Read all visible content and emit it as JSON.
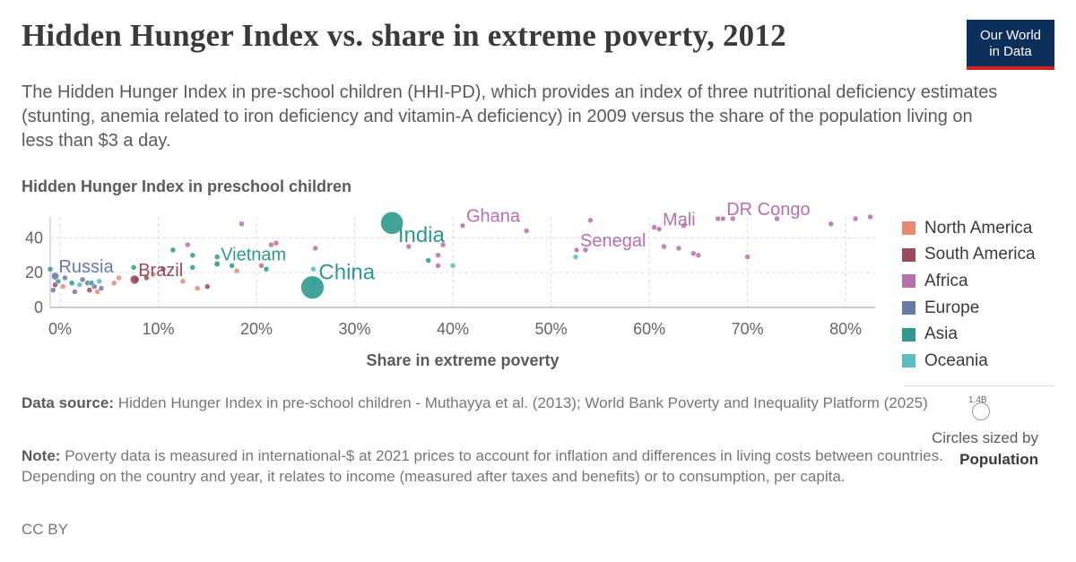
{
  "title": "Hidden Hunger Index vs. share in extreme poverty, 2012",
  "subtitle": "The Hidden Hunger Index in pre-school children (HHI-PD), which provides an index of three nutritional deficiency estimates (stunting, anemia related to iron deficiency and vitamin-A deficiency) in 2009 versus the share of the population living on less than $3 a day.",
  "logo": {
    "line1": "Our World",
    "line2": "in Data"
  },
  "size_legend": {
    "value": "1.4B",
    "label": "Circles sized by",
    "variable": "Population"
  },
  "footer": {
    "source_label": "Data source:",
    "source_text": "Hidden Hunger Index in pre-school children - Muthayya et al. (2013); World Bank Poverty and Inequality Platform (2025)",
    "note_label": "Note:",
    "note_text": "Poverty data is measured in international-$ at 2021 prices to account for inflation and differences in living costs between countries. Depending on the country and year, it relates to income (measured after taxes and benefits) or to consumption, per capita.",
    "license": "CC BY"
  },
  "colors": {
    "North America": "#e56e5a",
    "South America": "#a2559c",
    "Africa": "#a2559c",
    "Europe": "#6d3e91",
    "Asia": "#00847e",
    "Oceania": "#38aaba"
  },
  "chart_data": {
    "type": "scatter",
    "xlabel": "Share in extreme poverty",
    "ylabel": "Hidden Hunger Index in preschool children",
    "xlim": [
      -1,
      83
    ],
    "ylim": [
      0,
      52
    ],
    "x_ticks": [
      0,
      10,
      20,
      30,
      40,
      50,
      60,
      70,
      80
    ],
    "x_tick_labels": [
      "0%",
      "10%",
      "20%",
      "30%",
      "40%",
      "50%",
      "60%",
      "70%",
      "80%"
    ],
    "y_ticks": [
      0,
      20,
      40
    ],
    "y_tick_labels": [
      "0",
      "20",
      "40"
    ],
    "grid": true,
    "legend_position": "right",
    "legend": [
      {
        "name": "North America",
        "color": "#e88a73"
      },
      {
        "name": "South America",
        "color": "#9a4a5a"
      },
      {
        "name": "Africa",
        "color": "#b86fb0"
      },
      {
        "name": "Europe",
        "color": "#6a7aa8"
      },
      {
        "name": "Asia",
        "color": "#2e9a8e"
      },
      {
        "name": "Oceania",
        "color": "#5cbcc2"
      }
    ],
    "labels": [
      {
        "name": "Russia",
        "x": -0.5,
        "y": 18,
        "region": "Europe",
        "pop": 143
      },
      {
        "name": "Brazil",
        "x": 7.6,
        "y": 16,
        "region": "South America",
        "pop": 200
      },
      {
        "name": "Vietnam",
        "x": 16,
        "y": 25,
        "region": "Asia",
        "pop": 89
      },
      {
        "name": "China",
        "x": 25.7,
        "y": 11.5,
        "region": "Asia",
        "pop": 1360
      },
      {
        "name": "India",
        "x": 33.8,
        "y": 48.5,
        "region": "Asia",
        "pop": 1240
      },
      {
        "name": "Ghana",
        "x": 41,
        "y": 47,
        "region": "Africa",
        "pop": 26
      },
      {
        "name": "Senegal",
        "x": 52.6,
        "y": 33,
        "region": "Africa",
        "pop": 14
      },
      {
        "name": "Mali",
        "x": 61,
        "y": 45,
        "region": "Africa",
        "pop": 16
      },
      {
        "name": "DR Congo",
        "x": 67.5,
        "y": 51,
        "region": "Africa",
        "pop": 70
      }
    ],
    "points": [
      {
        "x": -0.7,
        "y": 10,
        "region": "Europe",
        "pop": 10
      },
      {
        "x": -0.5,
        "y": 13,
        "region": "South America",
        "pop": 10
      },
      {
        "x": -0.2,
        "y": 15,
        "region": "Asia",
        "pop": 20
      },
      {
        "x": 0.3,
        "y": 12,
        "region": "North America",
        "pop": 10
      },
      {
        "x": 0.5,
        "y": 17,
        "region": "Europe",
        "pop": 8
      },
      {
        "x": 1.2,
        "y": 14,
        "region": "Asia",
        "pop": 12
      },
      {
        "x": 1.5,
        "y": 9,
        "region": "Europe",
        "pop": 5
      },
      {
        "x": 2,
        "y": 13,
        "region": "Oceania",
        "pop": 4
      },
      {
        "x": 2.3,
        "y": 16,
        "region": "Europe",
        "pop": 6
      },
      {
        "x": 2.8,
        "y": 14,
        "region": "Europe",
        "pop": 9
      },
      {
        "x": 3,
        "y": 10,
        "region": "South America",
        "pop": 7
      },
      {
        "x": 3.2,
        "y": 14,
        "region": "Asia",
        "pop": 6
      },
      {
        "x": 3.5,
        "y": 12,
        "region": "Europe",
        "pop": 5
      },
      {
        "x": 3.8,
        "y": 9,
        "region": "North America",
        "pop": 4
      },
      {
        "x": 4,
        "y": 15,
        "region": "Oceania",
        "pop": 4
      },
      {
        "x": 4.2,
        "y": 11,
        "region": "Europe",
        "pop": 3
      },
      {
        "x": -1,
        "y": 22,
        "region": "Asia",
        "pop": 15
      },
      {
        "x": 5.5,
        "y": 14,
        "region": "North America",
        "pop": 6
      },
      {
        "x": 6,
        "y": 17,
        "region": "North America",
        "pop": 5
      },
      {
        "x": 7.5,
        "y": 23,
        "region": "Asia",
        "pop": 10
      },
      {
        "x": 7.8,
        "y": 16,
        "region": "South America",
        "pop": 30
      },
      {
        "x": 8.8,
        "y": 17,
        "region": "South America",
        "pop": 8
      },
      {
        "x": 9.5,
        "y": 19,
        "region": "North America",
        "pop": 5
      },
      {
        "x": 10.5,
        "y": 22,
        "region": "South America",
        "pop": 6
      },
      {
        "x": 11.5,
        "y": 33,
        "region": "Asia",
        "pop": 18
      },
      {
        "x": 12.5,
        "y": 15,
        "region": "North America",
        "pop": 6
      },
      {
        "x": 13,
        "y": 36,
        "region": "Africa",
        "pop": 10
      },
      {
        "x": 13.5,
        "y": 30,
        "region": "Asia",
        "pop": 8
      },
      {
        "x": 13.5,
        "y": 23,
        "region": "Asia",
        "pop": 6
      },
      {
        "x": 14,
        "y": 11,
        "region": "North America",
        "pop": 5
      },
      {
        "x": 15,
        "y": 12,
        "region": "South America",
        "pop": 5
      },
      {
        "x": 16,
        "y": 29,
        "region": "Asia",
        "pop": 8
      },
      {
        "x": 17.5,
        "y": 24,
        "region": "Asia",
        "pop": 10
      },
      {
        "x": 18,
        "y": 21,
        "region": "North America",
        "pop": 6
      },
      {
        "x": 18.5,
        "y": 48,
        "region": "Africa",
        "pop": 5
      },
      {
        "x": 20.5,
        "y": 24,
        "region": "Africa",
        "pop": 5
      },
      {
        "x": 21,
        "y": 22,
        "region": "Asia",
        "pop": 6
      },
      {
        "x": 21.5,
        "y": 36,
        "region": "Africa",
        "pop": 6
      },
      {
        "x": 22,
        "y": 37,
        "region": "Africa",
        "pop": 7
      },
      {
        "x": 26,
        "y": 34,
        "region": "Africa",
        "pop": 6
      },
      {
        "x": 25.8,
        "y": 22,
        "region": "Oceania",
        "pop": 4
      },
      {
        "x": 25.8,
        "y": 15,
        "region": "Africa",
        "pop": 5
      },
      {
        "x": 35.5,
        "y": 35,
        "region": "Africa",
        "pop": 8
      },
      {
        "x": 37.5,
        "y": 27,
        "region": "Asia",
        "pop": 50
      },
      {
        "x": 38.5,
        "y": 24,
        "region": "Africa",
        "pop": 6
      },
      {
        "x": 39,
        "y": 36,
        "region": "Africa",
        "pop": 8
      },
      {
        "x": 38.5,
        "y": 30,
        "region": "Africa",
        "pop": 6
      },
      {
        "x": 40,
        "y": 24,
        "region": "Oceania",
        "pop": 5
      },
      {
        "x": 47.5,
        "y": 44,
        "region": "Africa",
        "pop": 6
      },
      {
        "x": 52.5,
        "y": 29,
        "region": "Oceania",
        "pop": 5
      },
      {
        "x": 53.5,
        "y": 33,
        "region": "Africa",
        "pop": 8
      },
      {
        "x": 54,
        "y": 50,
        "region": "Africa",
        "pop": 6
      },
      {
        "x": 60.5,
        "y": 46,
        "region": "Africa",
        "pop": 6
      },
      {
        "x": 61.5,
        "y": 35,
        "region": "Africa",
        "pop": 7
      },
      {
        "x": 63,
        "y": 34,
        "region": "Africa",
        "pop": 8
      },
      {
        "x": 63.5,
        "y": 47,
        "region": "Africa",
        "pop": 6
      },
      {
        "x": 64.5,
        "y": 31,
        "region": "Africa",
        "pop": 8
      },
      {
        "x": 65,
        "y": 30,
        "region": "Africa",
        "pop": 7
      },
      {
        "x": 67,
        "y": 51,
        "region": "Africa",
        "pop": 6
      },
      {
        "x": 68.5,
        "y": 51,
        "region": "Africa",
        "pop": 7
      },
      {
        "x": 70,
        "y": 29,
        "region": "Africa",
        "pop": 6
      },
      {
        "x": 73,
        "y": 51,
        "region": "Africa",
        "pop": 6
      },
      {
        "x": 78.5,
        "y": 48,
        "region": "Africa",
        "pop": 8
      },
      {
        "x": 81,
        "y": 51,
        "region": "Africa",
        "pop": 6
      },
      {
        "x": 82.5,
        "y": 52,
        "region": "Africa",
        "pop": 6
      }
    ]
  }
}
